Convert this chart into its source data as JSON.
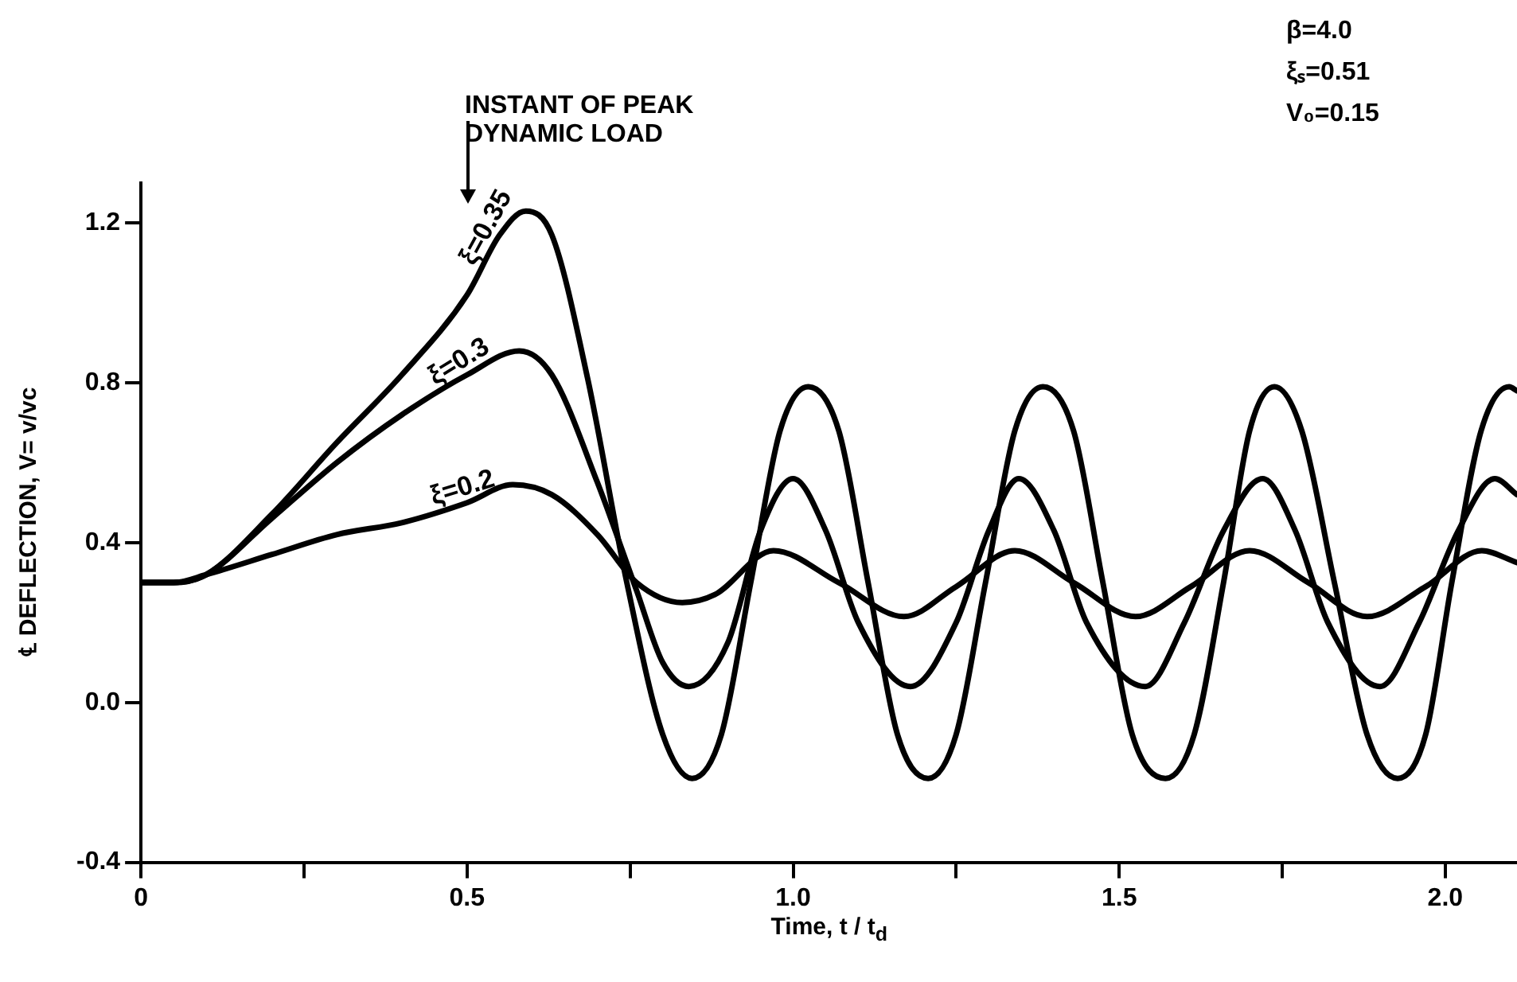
{
  "chart_data": {
    "type": "line",
    "xlabel": "Time, t / t$_{d}$",
    "ylabel": "℄ DEFLECTION, V= v/vc",
    "xlim": [
      0,
      2.11
    ],
    "ylim": [
      -0.4,
      1.3
    ],
    "xticks": [
      0,
      {
        "value": 0.25,
        "label": null
      },
      0.5,
      {
        "value": 0.75,
        "label": null
      },
      {
        "value": 1,
        "label": "1.0"
      },
      {
        "value": 1.25,
        "label": null
      },
      1.5,
      {
        "value": 1.75,
        "label": null
      },
      {
        "value": 2,
        "label": "2.0"
      }
    ],
    "yticks": [
      {
        "value": -0.4,
        "label": "-0.4"
      },
      {
        "value": 0,
        "label": "0.0"
      },
      0.4,
      0.8,
      1.2
    ],
    "grid": false,
    "legend": false,
    "marker": "none",
    "line_style": "solid",
    "annotations": [
      "INSTANT OF PEAK\nDYNAMIC LOAD",
      "β=4.0",
      "ξₛ=0.51",
      "V₀=0.15"
    ],
    "series": [
      {
        "name": "ξ=0.35",
        "color": "#000000",
        "x": [
          0,
          0.05,
          0.1,
          0.2,
          0.3,
          0.4,
          0.5,
          0.55,
          0.59,
          0.63,
          0.685,
          0.745,
          0.8,
          0.845,
          0.89,
          0.935,
          0.98,
          1.023,
          1.07,
          1.115,
          1.16,
          1.207,
          1.25,
          1.295,
          1.34,
          1.383,
          1.43,
          1.475,
          1.52,
          1.571,
          1.615,
          1.66,
          1.7,
          1.738,
          1.78,
          1.83,
          1.88,
          1.927,
          1.97,
          2.01,
          2.055,
          2.098,
          2.11
        ],
        "values": [
          0.3,
          0.3,
          0.32,
          0.47,
          0.65,
          0.82,
          1.02,
          1.17,
          1.23,
          1.17,
          0.81,
          0.3,
          -0.08,
          -0.19,
          -0.08,
          0.3,
          0.68,
          0.79,
          0.68,
          0.3,
          -0.08,
          -0.19,
          -0.08,
          0.3,
          0.68,
          0.79,
          0.68,
          0.3,
          -0.08,
          -0.19,
          -0.08,
          0.3,
          0.68,
          0.79,
          0.68,
          0.3,
          -0.08,
          -0.19,
          -0.08,
          0.3,
          0.68,
          0.79,
          0.78
        ]
      },
      {
        "name": "ξ=0.3",
        "color": "#000000",
        "x": [
          0,
          0.05,
          0.1,
          0.2,
          0.3,
          0.4,
          0.5,
          0.58,
          0.63,
          0.7,
          0.76,
          0.8,
          0.84,
          0.9,
          0.95,
          1.0,
          1.05,
          1.1,
          1.18,
          1.25,
          1.3,
          1.346,
          1.4,
          1.45,
          1.54,
          1.6,
          1.66,
          1.72,
          1.77,
          1.82,
          1.9,
          1.96,
          2.02,
          2.076,
          2.11
        ],
        "values": [
          0.3,
          0.3,
          0.32,
          0.46,
          0.6,
          0.72,
          0.82,
          0.88,
          0.82,
          0.55,
          0.28,
          0.1,
          0.04,
          0.15,
          0.43,
          0.56,
          0.43,
          0.2,
          0.04,
          0.2,
          0.43,
          0.56,
          0.43,
          0.2,
          0.04,
          0.2,
          0.43,
          0.56,
          0.43,
          0.2,
          0.04,
          0.2,
          0.43,
          0.56,
          0.52
        ]
      },
      {
        "name": "ξ=0.2",
        "color": "#000000",
        "x": [
          0,
          0.05,
          0.1,
          0.2,
          0.3,
          0.4,
          0.5,
          0.57,
          0.63,
          0.7,
          0.76,
          0.83,
          0.88,
          0.97,
          1.07,
          1.17,
          1.25,
          1.34,
          1.43,
          1.525,
          1.61,
          1.7,
          1.79,
          1.88,
          1.97,
          2.056,
          2.11
        ],
        "values": [
          0.3,
          0.3,
          0.32,
          0.37,
          0.42,
          0.45,
          0.5,
          0.545,
          0.52,
          0.42,
          0.3,
          0.25,
          0.27,
          0.38,
          0.3,
          0.215,
          0.29,
          0.38,
          0.3,
          0.215,
          0.29,
          0.38,
          0.3,
          0.215,
          0.29,
          0.38,
          0.35
        ]
      }
    ]
  }
}
